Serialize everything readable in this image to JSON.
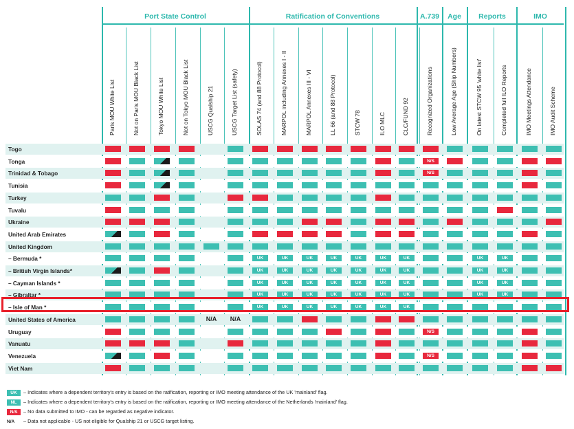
{
  "groups": [
    {
      "label": "Port State Control"
    },
    {
      "label": "Ratification of Conventions"
    },
    {
      "label": "A.739"
    },
    {
      "label": "Age"
    },
    {
      "label": "Reports"
    },
    {
      "label": "IMO"
    }
  ],
  "columns": [
    "Paris MOU White List",
    "Not on Paris MOU Black List",
    "Tokyo MOU White List",
    "Not on Tokyo MOU Black List",
    "USCG Qualship 21",
    "USCG Target List (safety)",
    "SOLAS 74 (and 88 Protocol)",
    "MARPOL including Annexes I - II",
    "MARPOL Annexes III - VI",
    "LL 66 (and 88 Protocol)",
    "STCW 78",
    "ILO MLC",
    "CLC/FUND 92",
    "Recognized Organizations",
    "Low Average Age (Ship Numbers)",
    "On latest STCW 95 'white list'",
    "Completed full ILO Reports",
    "IMO Meetings Attendance",
    "IMO Audit Scheme"
  ],
  "rows": [
    {
      "name": "Togo",
      "cells": [
        "r",
        "r",
        "r",
        "r",
        "",
        "t",
        "r",
        "r",
        "r",
        "r",
        "r",
        "r",
        "r",
        "r",
        "t",
        "t",
        "t",
        "t",
        "t"
      ]
    },
    {
      "name": "Tonga",
      "cells": [
        "r",
        "t",
        "h",
        "t",
        "",
        "t",
        "t",
        "t",
        "t",
        "t",
        "t",
        "r",
        "t",
        "N/S",
        "r",
        "t",
        "t",
        "r",
        "r"
      ]
    },
    {
      "name": "Trinidad & Tobago",
      "cells": [
        "r",
        "t",
        "h",
        "t",
        "",
        "t",
        "t",
        "t",
        "t",
        "t",
        "t",
        "r",
        "t",
        "N/S",
        "t",
        "t",
        "t",
        "r",
        "t"
      ]
    },
    {
      "name": "Tunisia",
      "cells": [
        "r",
        "t",
        "h",
        "t",
        "",
        "t",
        "t",
        "t",
        "t",
        "t",
        "t",
        "t",
        "t",
        "t",
        "t",
        "t",
        "t",
        "r",
        "t"
      ]
    },
    {
      "name": "Turkey",
      "cells": [
        "t",
        "t",
        "r",
        "t",
        "",
        "r",
        "r",
        "t",
        "t",
        "t",
        "t",
        "r",
        "t",
        "t",
        "t",
        "t",
        "t",
        "t",
        "t"
      ]
    },
    {
      "name": "Tuvalu",
      "cells": [
        "r",
        "t",
        "t",
        "t",
        "",
        "t",
        "t",
        "t",
        "t",
        "t",
        "t",
        "t",
        "t",
        "t",
        "t",
        "t",
        "r",
        "t",
        "t"
      ]
    },
    {
      "name": "Ukraine",
      "cells": [
        "r",
        "r",
        "r",
        "t",
        "",
        "t",
        "t",
        "t",
        "r",
        "r",
        "t",
        "r",
        "r",
        "t",
        "r",
        "t",
        "t",
        "t",
        "r"
      ]
    },
    {
      "name": "United Arab Emirates",
      "cells": [
        "h",
        "t",
        "r",
        "t",
        "",
        "t",
        "r",
        "r",
        "r",
        "r",
        "t",
        "r",
        "r",
        "t",
        "t",
        "t",
        "t",
        "r",
        "t"
      ]
    },
    {
      "name": "United Kingdom",
      "cells": [
        "t",
        "t",
        "t",
        "t",
        "t",
        "t",
        "t",
        "t",
        "t",
        "t",
        "t",
        "t",
        "t",
        "t",
        "t",
        "t",
        "t",
        "t",
        "t"
      ]
    },
    {
      "name": "– Bermuda *",
      "cells": [
        "t",
        "t",
        "t",
        "t",
        "",
        "t",
        "UK",
        "UK",
        "UK",
        "UK",
        "UK",
        "UK",
        "UK",
        "t",
        "t",
        "UK",
        "UK",
        "t",
        "t"
      ]
    },
    {
      "name": "– British Virgin Islands*",
      "cells": [
        "h",
        "t",
        "r",
        "t",
        "",
        "t",
        "UK",
        "UK",
        "UK",
        "UK",
        "UK",
        "UK",
        "UK",
        "t",
        "t",
        "UK",
        "UK",
        "t",
        "t"
      ]
    },
    {
      "name": "– Cayman Islands *",
      "cells": [
        "t",
        "t",
        "t",
        "t",
        "",
        "t",
        "UK",
        "UK",
        "UK",
        "UK",
        "UK",
        "UK",
        "UK",
        "t",
        "t",
        "UK",
        "UK",
        "t",
        "t"
      ]
    },
    {
      "name": "– Gibraltar *",
      "cells": [
        "t",
        "t",
        "t",
        "t",
        "",
        "t",
        "UK",
        "UK",
        "UK",
        "UK",
        "UK",
        "UK",
        "UK",
        "t",
        "t",
        "UK",
        "UK",
        "t",
        "t"
      ]
    },
    {
      "name": "– Isle of Man *",
      "cells": [
        "t",
        "t",
        "t",
        "t",
        "",
        "t",
        "UK",
        "UK",
        "UK",
        "UK",
        "UK",
        "UK",
        "UK",
        "t",
        "t",
        "t",
        "t",
        "t",
        "t"
      ]
    },
    {
      "name": "United States of America",
      "cells": [
        "t",
        "t",
        "t",
        "t",
        "N/A",
        "N/A",
        "t",
        "t",
        "r",
        "t",
        "t",
        "r",
        "r",
        "t",
        "t",
        "t",
        "t",
        "t",
        "t"
      ]
    },
    {
      "name": "Uruguay",
      "cells": [
        "r",
        "t",
        "t",
        "t",
        "",
        "t",
        "t",
        "t",
        "t",
        "r",
        "t",
        "r",
        "t",
        "N/S",
        "t",
        "t",
        "t",
        "r",
        "t"
      ]
    },
    {
      "name": "Vanuatu",
      "cells": [
        "r",
        "r",
        "r",
        "t",
        "",
        "r",
        "t",
        "t",
        "t",
        "t",
        "t",
        "r",
        "t",
        "t",
        "t",
        "t",
        "t",
        "r",
        "t"
      ]
    },
    {
      "name": "Venezuela",
      "cells": [
        "h",
        "t",
        "r",
        "t",
        "",
        "t",
        "t",
        "t",
        "t",
        "t",
        "t",
        "r",
        "t",
        "N/S",
        "t",
        "t",
        "t",
        "r",
        "t"
      ]
    },
    {
      "name": "Viet Nam",
      "cells": [
        "r",
        "t",
        "t",
        "t",
        "",
        "t",
        "t",
        "t",
        "t",
        "t",
        "t",
        "t",
        "t",
        "t",
        "t",
        "t",
        "t",
        "r",
        "r"
      ]
    }
  ],
  "legend": [
    {
      "badge": "UK",
      "badge_color": "#3dbfb2",
      "text": "– Indicates where a dependent territory's entry is based on the ratification, reporting or IMO meeting attendance of the UK 'mainland' flag."
    },
    {
      "badge": "NL",
      "badge_color": "#3dbfb2",
      "text": "– Indicates where a dependent territory's entry is based on the ratification, reporting or IMO meeting attendance of the Netherlands 'mainland' flag."
    },
    {
      "badge": "N/S",
      "badge_color": "#e8283d",
      "text": "– No data submitted to IMO - can be regarded as negative indicator."
    },
    {
      "badge": "N/A",
      "badge_color": "",
      "text": "– Data not applicable - US not eligible for Qualship 21 or USCG target listing."
    }
  ],
  "colors": {
    "teal": "#3dbfb2",
    "red": "#e8283d",
    "highlight": "#e8202a",
    "row_alt": "#e0f2f0"
  }
}
